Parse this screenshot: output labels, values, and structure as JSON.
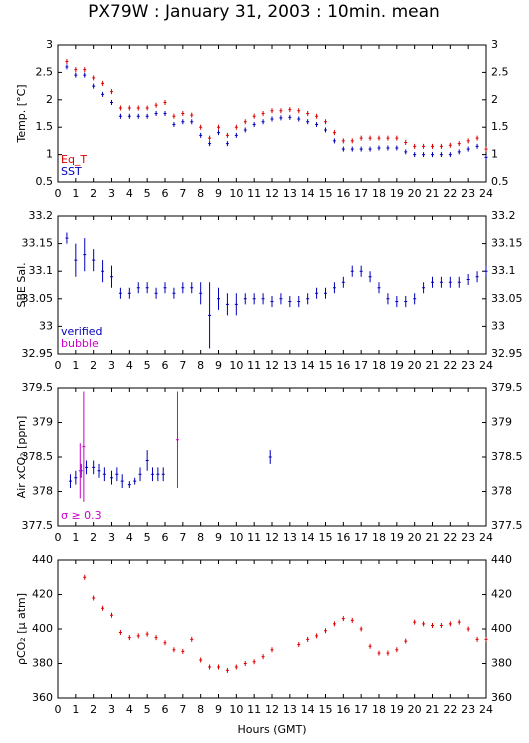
{
  "title": "PX79W : January 31, 2003 : 10min. mean",
  "chart_data": [
    {
      "type": "scatter",
      "ylabel": "Temp. [°C]",
      "legend": "lower left",
      "xlim": [
        0,
        24
      ],
      "xticks": [
        0,
        1,
        2,
        3,
        4,
        5,
        6,
        7,
        8,
        9,
        10,
        11,
        12,
        13,
        14,
        15,
        16,
        17,
        18,
        19,
        20,
        21,
        22,
        23,
        24
      ],
      "ylim": [
        0.5,
        3
      ],
      "yticks": [
        0.5,
        1,
        1.5,
        2,
        2.5,
        3
      ],
      "x": [
        0.5,
        1,
        1.5,
        2,
        2.5,
        3,
        3.5,
        4,
        4.5,
        5,
        5.5,
        6,
        6.5,
        7,
        7.5,
        8,
        8.5,
        9,
        9.5,
        10,
        10.5,
        11,
        11.5,
        12,
        12.5,
        13,
        13.5,
        14,
        14.5,
        15,
        15.5,
        16,
        16.5,
        17,
        17.5,
        18,
        18.5,
        19,
        19.5,
        20,
        20.5,
        21,
        21.5,
        22,
        22.5,
        23,
        23.5,
        24
      ],
      "series": [
        {
          "name": "Eq_T",
          "color": "#dd0000",
          "values": [
            2.7,
            2.55,
            2.55,
            2.4,
            2.3,
            2.15,
            1.85,
            1.85,
            1.85,
            1.85,
            1.9,
            1.95,
            1.7,
            1.75,
            1.72,
            1.5,
            1.3,
            1.5,
            1.35,
            1.5,
            1.6,
            1.7,
            1.75,
            1.8,
            1.8,
            1.82,
            1.8,
            1.75,
            1.7,
            1.6,
            1.4,
            1.25,
            1.25,
            1.3,
            1.3,
            1.3,
            1.3,
            1.3,
            1.22,
            1.15,
            1.15,
            1.15,
            1.15,
            1.17,
            1.2,
            1.25,
            1.3,
            1.1
          ]
        },
        {
          "name": "SST",
          "color": "#0000bb",
          "values": [
            2.6,
            2.45,
            2.45,
            2.25,
            2.1,
            1.95,
            1.7,
            1.7,
            1.7,
            1.7,
            1.75,
            1.75,
            1.55,
            1.6,
            1.6,
            1.35,
            1.2,
            1.4,
            1.2,
            1.35,
            1.45,
            1.55,
            1.6,
            1.65,
            1.67,
            1.68,
            1.65,
            1.6,
            1.55,
            1.45,
            1.25,
            1.1,
            1.1,
            1.1,
            1.1,
            1.12,
            1.12,
            1.12,
            1.05,
            1.0,
            1.0,
            1.0,
            1.0,
            1.0,
            1.05,
            1.1,
            1.15,
            0.95
          ]
        }
      ]
    },
    {
      "type": "scatter",
      "ylabel": "SBE Sal.",
      "legend": "lower left",
      "xlim": [
        0,
        24
      ],
      "xticks": [
        0,
        1,
        2,
        3,
        4,
        5,
        6,
        7,
        8,
        9,
        10,
        11,
        12,
        13,
        14,
        15,
        16,
        17,
        18,
        19,
        20,
        21,
        22,
        23,
        24
      ],
      "ylim": [
        32.95,
        33.2
      ],
      "yticks": [
        32.95,
        33,
        33.05,
        33.1,
        33.15,
        33.2
      ],
      "series": [
        {
          "name": "verified",
          "color": "#0000bb",
          "x": [
            0.5,
            1,
            1.5,
            2,
            2.5,
            3,
            3.5,
            4,
            4.5,
            5,
            5.5,
            6,
            6.5,
            7,
            7.5,
            8,
            8.5,
            9,
            9.5,
            10,
            10.5,
            11,
            11.5,
            12,
            12.5,
            13,
            13.5,
            14,
            14.5,
            15,
            15.5,
            16,
            16.5,
            17,
            17.5,
            18,
            18.5,
            19,
            19.5,
            20,
            20.5,
            21,
            21.5,
            22,
            22.5,
            23,
            23.5,
            24
          ],
          "values": [
            33.16,
            33.12,
            33.13,
            33.12,
            33.1,
            33.09,
            33.06,
            33.06,
            33.07,
            33.07,
            33.06,
            33.07,
            33.06,
            33.07,
            33.07,
            33.06,
            33.02,
            33.05,
            33.04,
            33.04,
            33.05,
            33.05,
            33.05,
            33.045,
            33.05,
            33.045,
            33.045,
            33.05,
            33.06,
            33.06,
            33.07,
            33.08,
            33.1,
            33.1,
            33.09,
            33.07,
            33.05,
            33.045,
            33.045,
            33.05,
            33.07,
            33.08,
            33.08,
            33.08,
            33.08,
            33.085,
            33.09,
            33.1
          ],
          "errors": [
            0.01,
            0.03,
            0.03,
            0.02,
            0.02,
            0.02,
            0.01,
            0.01,
            0.01,
            0.01,
            0.01,
            0.01,
            0.01,
            0.01,
            0.01,
            0.02,
            0.06,
            0.02,
            0.02,
            0.02,
            0.01,
            0.01,
            0.01,
            0.01,
            0.01,
            0.01,
            0.01,
            0.01,
            0.01,
            0.01,
            0.01,
            0.01,
            0.01,
            0.01,
            0.01,
            0.01,
            0.01,
            0.01,
            0.01,
            0.01,
            0.01,
            0.01,
            0.01,
            0.01,
            0.01,
            0.01,
            0.01,
            0.01
          ]
        },
        {
          "name": "bubble",
          "color": "#cc00cc",
          "x": [],
          "values": [],
          "errors": []
        }
      ]
    },
    {
      "type": "scatter",
      "ylabel": "Air xCO₂ [ppm]",
      "legend": "lower left",
      "xlim": [
        0,
        24
      ],
      "xticks": [
        0,
        1,
        2,
        3,
        4,
        5,
        6,
        7,
        8,
        9,
        10,
        11,
        12,
        13,
        14,
        15,
        16,
        17,
        18,
        19,
        20,
        21,
        22,
        23,
        24
      ],
      "ylim": [
        377.5,
        379.5
      ],
      "yticks": [
        377.5,
        378,
        378.5,
        379,
        379.5
      ],
      "series": [
        {
          "color": "#0000bb",
          "x": [
            0.7,
            1,
            1.3,
            1.6,
            2,
            2.3,
            2.6,
            3,
            3.3,
            3.6,
            4,
            4.3,
            4.6,
            5,
            5.3,
            5.6,
            5.9,
            11.9
          ],
          "values": [
            378.15,
            378.2,
            378.3,
            378.35,
            378.35,
            378.3,
            378.25,
            378.2,
            378.25,
            378.15,
            378.1,
            378.15,
            378.25,
            378.45,
            378.25,
            378.25,
            378.25,
            378.5
          ],
          "errors": [
            0.1,
            0.1,
            0.1,
            0.1,
            0.1,
            0.1,
            0.1,
            0.1,
            0.1,
            0.1,
            0.05,
            0.05,
            0.1,
            0.15,
            0.1,
            0.1,
            0.1,
            0.1
          ]
        },
        {
          "name": "σ ≥ 0.3",
          "color": "#cc00cc",
          "x": [
            1.25,
            1.45,
            6.7
          ],
          "values": [
            378.3,
            378.65,
            378.75
          ],
          "errors": [
            0.4,
            0.8,
            0.7
          ]
        }
      ]
    },
    {
      "type": "scatter",
      "ylabel": "ρCO₂ [μ atm]",
      "xlabel": "Hours (GMT)",
      "xlim": [
        0,
        24
      ],
      "xticks": [
        0,
        1,
        2,
        3,
        4,
        5,
        6,
        7,
        8,
        9,
        10,
        11,
        12,
        13,
        14,
        15,
        16,
        17,
        18,
        19,
        20,
        21,
        22,
        23,
        24
      ],
      "ylim": [
        360,
        440
      ],
      "yticks": [
        360,
        380,
        400,
        420,
        440
      ],
      "x": [
        1.5,
        2,
        2.5,
        3,
        3.5,
        4,
        4.5,
        5,
        5.5,
        6,
        6.5,
        7,
        7.5,
        8,
        8.5,
        9,
        9.5,
        10,
        10.5,
        11,
        11.5,
        12,
        12.5,
        13,
        13.5,
        14,
        14.5,
        15,
        15.5,
        16,
        16.5,
        17,
        17.5,
        18,
        18.5,
        19,
        19.5,
        20,
        20.5,
        21,
        21.5,
        22,
        22.5,
        23,
        23.5,
        24
      ],
      "series": [
        {
          "color": "#dd0000",
          "values": [
            430,
            418,
            412,
            408,
            398,
            395,
            396,
            397,
            395,
            392,
            388,
            387,
            394,
            382,
            378,
            378,
            376,
            378,
            380,
            381,
            384,
            388,
            null,
            null,
            391,
            394,
            396,
            399,
            403,
            406,
            405,
            400,
            390,
            386,
            386,
            388,
            393,
            404,
            403,
            402,
            402,
            403,
            404,
            400,
            394,
            394
          ]
        }
      ]
    }
  ]
}
